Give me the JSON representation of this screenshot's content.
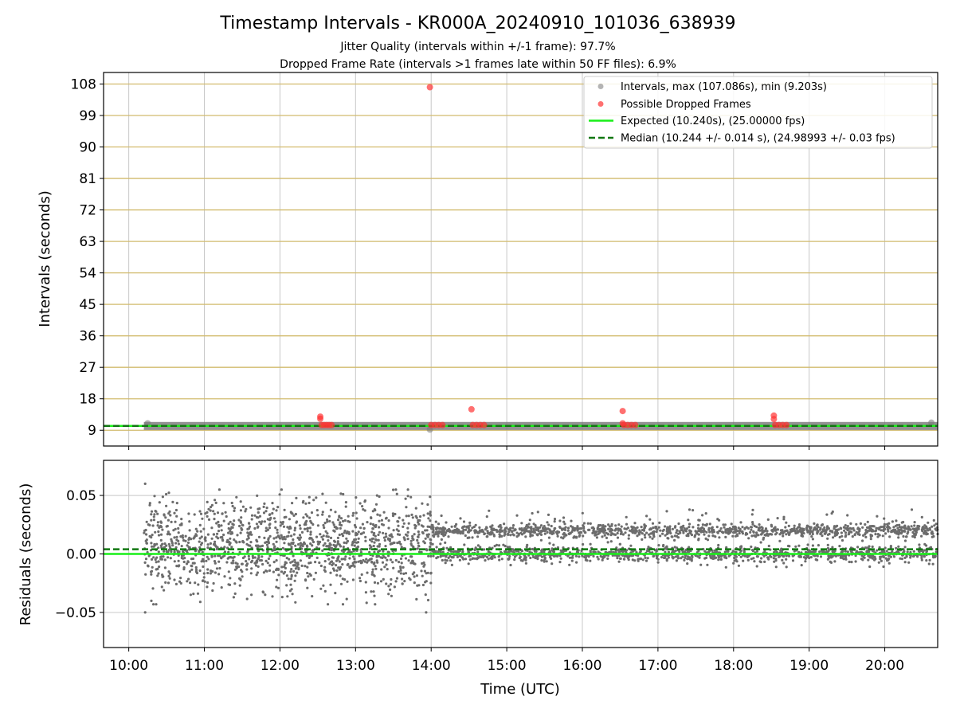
{
  "figure": {
    "title": "Timestamp Intervals - KR000A_20240910_101036_638939",
    "subtitle_line1": "Jitter Quality (intervals within +/-1 frame): 97.7%",
    "subtitle_line2": "Dropped Frame Rate (intervals >1 frames late within 50 FF files): 6.9%"
  },
  "chart_data": [
    {
      "type": "scatter",
      "ylabel": "Intervals (seconds)",
      "xlim": [
        "09:40",
        "20:42"
      ],
      "ylim": [
        4.5,
        111.3
      ],
      "y_ticks": [
        9,
        18,
        27,
        36,
        45,
        54,
        63,
        72,
        81,
        90,
        99,
        108
      ],
      "grid": true,
      "legend_position": "top-right",
      "legend": [
        "Intervals, max (107.086s), min (9.203s)",
        "Possible Dropped Frames",
        "Expected (10.240s), (25.00000 fps)",
        "Median (10.244 +/- 0.014 s), (24.98993 +/- 0.03 fps)"
      ],
      "expected_interval": 10.24,
      "median_interval": 10.244,
      "intervals_band": {
        "x_range": [
          "10:12",
          "20:42"
        ],
        "y_approx": 10.24
      },
      "interval_outliers": [
        {
          "x": "10:15",
          "y": 11.0
        },
        {
          "x": "13:59",
          "y": 9.2
        },
        {
          "x": "20:37",
          "y": 11.2
        }
      ],
      "dropped_frames": [
        {
          "x": "12:32",
          "y": 12.9
        },
        {
          "x": "12:32",
          "y": 12.3
        },
        {
          "x": "12:33",
          "y": 10.5
        },
        {
          "x": "12:35",
          "y": 10.5
        },
        {
          "x": "12:37",
          "y": 10.5
        },
        {
          "x": "12:39",
          "y": 10.5
        },
        {
          "x": "12:41",
          "y": 10.5
        },
        {
          "x": "13:59",
          "y": 107.086
        },
        {
          "x": "14:00",
          "y": 10.5
        },
        {
          "x": "14:03",
          "y": 10.5
        },
        {
          "x": "14:06",
          "y": 10.5
        },
        {
          "x": "14:09",
          "y": 10.5
        },
        {
          "x": "14:32",
          "y": 15.0
        },
        {
          "x": "14:33",
          "y": 10.5
        },
        {
          "x": "14:36",
          "y": 10.5
        },
        {
          "x": "14:39",
          "y": 10.5
        },
        {
          "x": "14:42",
          "y": 10.5
        },
        {
          "x": "16:32",
          "y": 14.5
        },
        {
          "x": "16:32",
          "y": 11.0
        },
        {
          "x": "16:33",
          "y": 10.5
        },
        {
          "x": "16:36",
          "y": 10.5
        },
        {
          "x": "16:39",
          "y": 10.5
        },
        {
          "x": "16:42",
          "y": 10.5
        },
        {
          "x": "18:32",
          "y": 13.2
        },
        {
          "x": "18:32",
          "y": 12.2
        },
        {
          "x": "18:33",
          "y": 10.5
        },
        {
          "x": "18:36",
          "y": 10.5
        },
        {
          "x": "18:39",
          "y": 10.5
        },
        {
          "x": "18:42",
          "y": 10.5
        }
      ]
    },
    {
      "type": "scatter",
      "xlabel": "Time (UTC)",
      "ylabel": "Residuals (seconds)",
      "xlim": [
        "09:40",
        "20:42"
      ],
      "ylim": [
        -0.08,
        0.08
      ],
      "x_ticks": [
        "10:00",
        "11:00",
        "12:00",
        "13:00",
        "14:00",
        "15:00",
        "16:00",
        "17:00",
        "18:00",
        "19:00",
        "20:00"
      ],
      "y_ticks": [
        "0.05",
        "0.00",
        "−0.05"
      ],
      "grid": true,
      "expected_residual": 0.0,
      "median_residual": 0.004,
      "residuals_phase1": {
        "x_range": [
          "10:12",
          "14:00"
        ],
        "y_min": -0.043,
        "y_max": 0.055,
        "spread": 0.02
      },
      "residuals_phase2": {
        "x_range": [
          "14:00",
          "20:42"
        ],
        "levels": [
          0.0,
          0.02
        ],
        "spread": 0.003
      },
      "residual_extremes": [
        {
          "x": "10:13",
          "y": 0.06
        },
        {
          "x": "10:13",
          "y": -0.05
        },
        {
          "x": "13:56",
          "y": -0.05
        }
      ]
    }
  ],
  "colors": {
    "intervals": "#777777",
    "dropped": "#ff3333",
    "expected": "#19ef19",
    "median": "#117711",
    "grid_vertical": "#c8c8c8",
    "grid_horizontal": "#d2bb6e",
    "residual_points": "#6c6c6c"
  }
}
